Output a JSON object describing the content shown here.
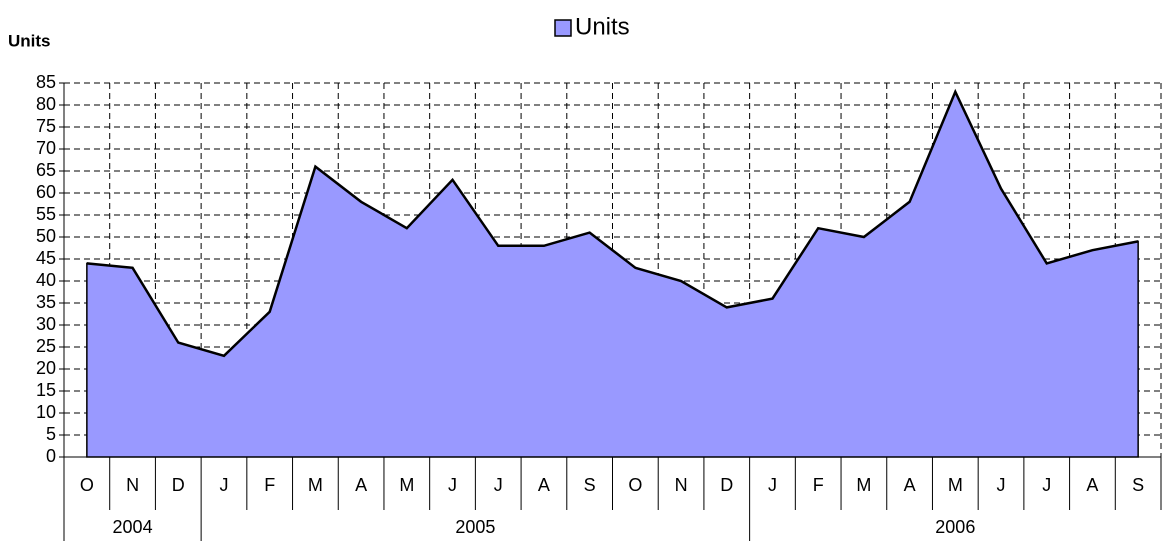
{
  "chart_data": {
    "type": "area",
    "y_label": "Units",
    "categories": [
      "O",
      "N",
      "D",
      "J",
      "F",
      "M",
      "A",
      "M",
      "J",
      "J",
      "A",
      "S",
      "O",
      "N",
      "D",
      "J",
      "F",
      "M",
      "A",
      "M",
      "J",
      "J",
      "A",
      "S"
    ],
    "groups": [
      {
        "name": "2004",
        "size": 3
      },
      {
        "name": "2005",
        "size": 12
      },
      {
        "name": "2006",
        "size": 9
      }
    ],
    "series": [
      {
        "name": "Units",
        "color": "#9999ff",
        "values": [
          44,
          43,
          26,
          23,
          33,
          66,
          58,
          52,
          63,
          48,
          48,
          51,
          43,
          40,
          34,
          36,
          52,
          50,
          58,
          83,
          61,
          44,
          47,
          49
        ]
      }
    ],
    "ylim": [
      0,
      85
    ],
    "yticks": [
      0,
      5,
      10,
      15,
      20,
      25,
      30,
      35,
      40,
      45,
      50,
      55,
      60,
      65,
      70,
      75,
      80,
      85
    ],
    "grid": true,
    "legend": "top"
  }
}
